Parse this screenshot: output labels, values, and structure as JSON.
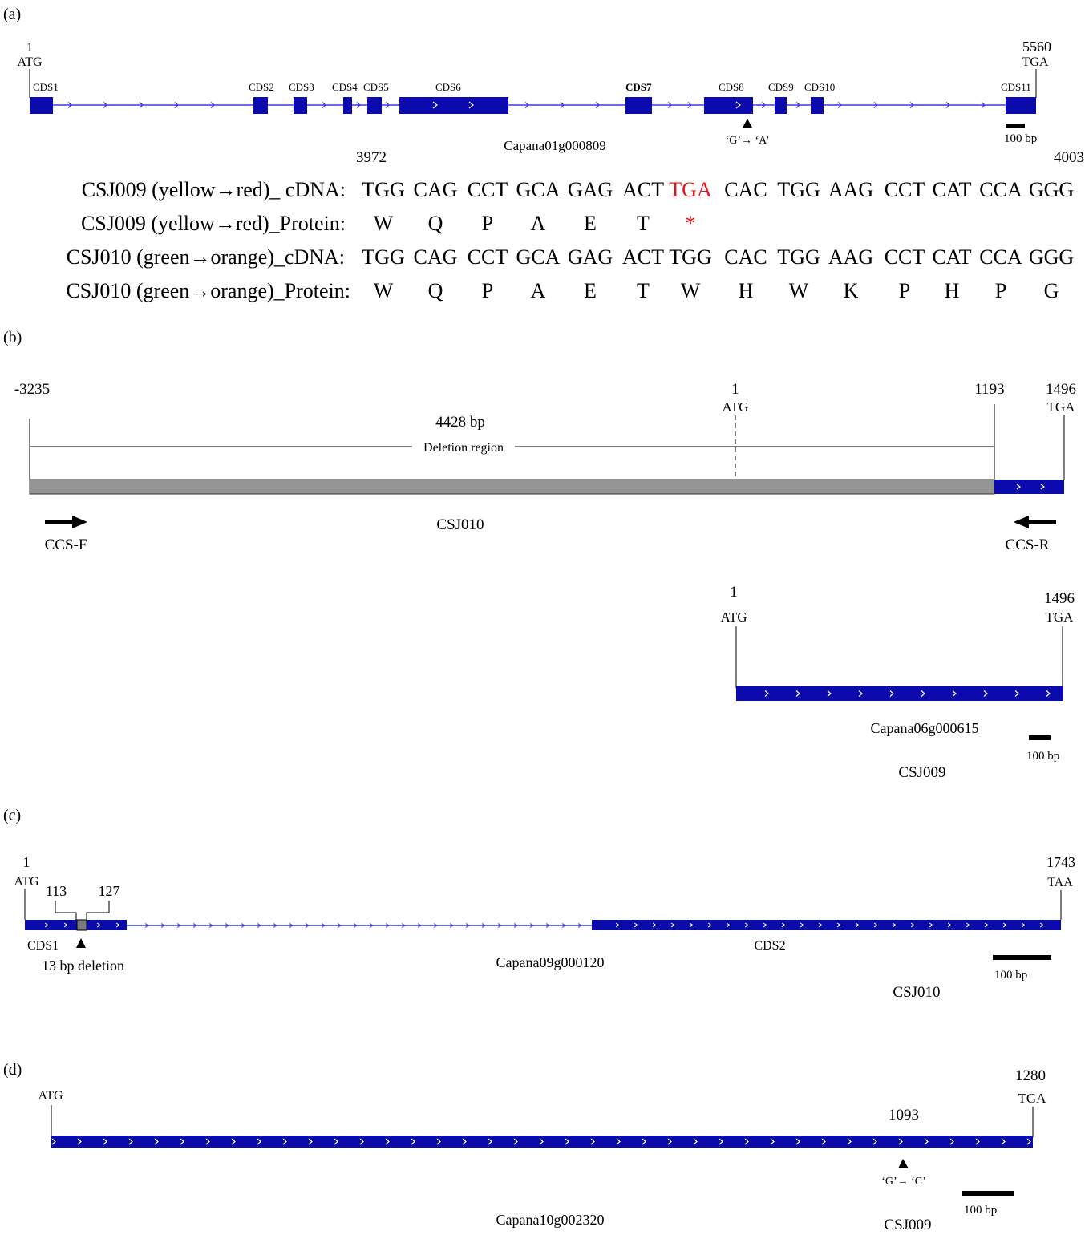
{
  "panels": {
    "a": {
      "label": "(a)",
      "start_num": "1",
      "start_codon": "ATG",
      "end_num": "5560",
      "end_codon": "TGA",
      "cds": [
        {
          "label": "CDS1",
          "bold": false
        },
        {
          "label": "CDS2",
          "bold": false
        },
        {
          "label": "CDS3",
          "bold": false
        },
        {
          "label": "CDS4",
          "bold": false
        },
        {
          "label": "CDS5",
          "bold": false
        },
        {
          "label": "CDS6",
          "bold": false
        },
        {
          "label": "CDS7",
          "bold": true
        },
        {
          "label": "CDS8",
          "bold": false
        },
        {
          "label": "CDS9",
          "bold": false
        },
        {
          "label": "CDS10",
          "bold": false
        },
        {
          "label": "CDS11",
          "bold": false
        }
      ],
      "mutation": "‘G’→ ‘A’",
      "gene": "Capana01g000809",
      "scale": "100 bp",
      "seq_start": "3972",
      "seq_end": "4003",
      "rows": [
        {
          "label": "CSJ009 (yellow→red)_ cDNA:",
          "tokens": [
            "TGG",
            "CAG",
            "CCT",
            "GCA",
            "GAG",
            "ACT",
            "TGA",
            "CAC",
            "TGG",
            "AAG",
            "CCT",
            "CAT",
            "CCA",
            "GGG"
          ],
          "highlight": 6
        },
        {
          "label": "CSJ009 (yellow→red)_Protein:",
          "tokens": [
            "W",
            "Q",
            "P",
            "A",
            "E",
            "T",
            "*"
          ],
          "highlight": 6
        },
        {
          "label": "CSJ010 (green→orange)_cDNA:",
          "tokens": [
            "TGG",
            "CAG",
            "CCT",
            "GCA",
            "GAG",
            "ACT",
            "TGG",
            "CAC",
            "TGG",
            "AAG",
            "CCT",
            "CAT",
            "CCA",
            "GGG"
          ],
          "highlight": -1
        },
        {
          "label": "CSJ010 (green→orange)_Protein:",
          "tokens": [
            "W",
            "Q",
            "P",
            "A",
            "E",
            "T",
            "W",
            "H",
            "W",
            "K",
            "P",
            "H",
            "P",
            "G"
          ],
          "highlight": -1
        }
      ]
    },
    "b": {
      "label": "(b)",
      "pos_start": "-3235",
      "pos_atg": "1",
      "atg": "ATG",
      "pos_1193": "1193",
      "pos_end": "1496",
      "tga": "TGA",
      "deletion_size": "4428 bp",
      "deletion_label": "Deletion region",
      "primer_f": "CCS-F",
      "primer_r": "CCS-R",
      "line1": "CSJ010",
      "pos_atg2": "1",
      "atg2": "ATG",
      "pos_end2": "1496",
      "tga2": "TGA",
      "gene": "Capana06g000615",
      "scale": "100 bp",
      "line2": "CSJ009"
    },
    "c": {
      "label": "(c)",
      "start_num": "1",
      "start_codon": "ATG",
      "del_start": "113",
      "del_end": "127",
      "end_num": "1743",
      "end_codon": "TAA",
      "cds1": "CDS1",
      "deletion": "13 bp deletion",
      "gene": "Capana09g000120",
      "cds2": "CDS2",
      "scale": "100 bp",
      "line": "CSJ010"
    },
    "d": {
      "label": "(d)",
      "start_codon": "ATG",
      "end_num": "1280",
      "end_codon": "TGA",
      "mut_pos": "1093",
      "mutation": "‘G’→ ‘C’",
      "scale": "100 bp",
      "gene": "Capana10g002320",
      "line": "CSJ009"
    }
  },
  "colors": {
    "exon": "#0a0aad",
    "intron": "#3a3ae8",
    "deleted": "#949494",
    "stop": "#e8141b"
  }
}
